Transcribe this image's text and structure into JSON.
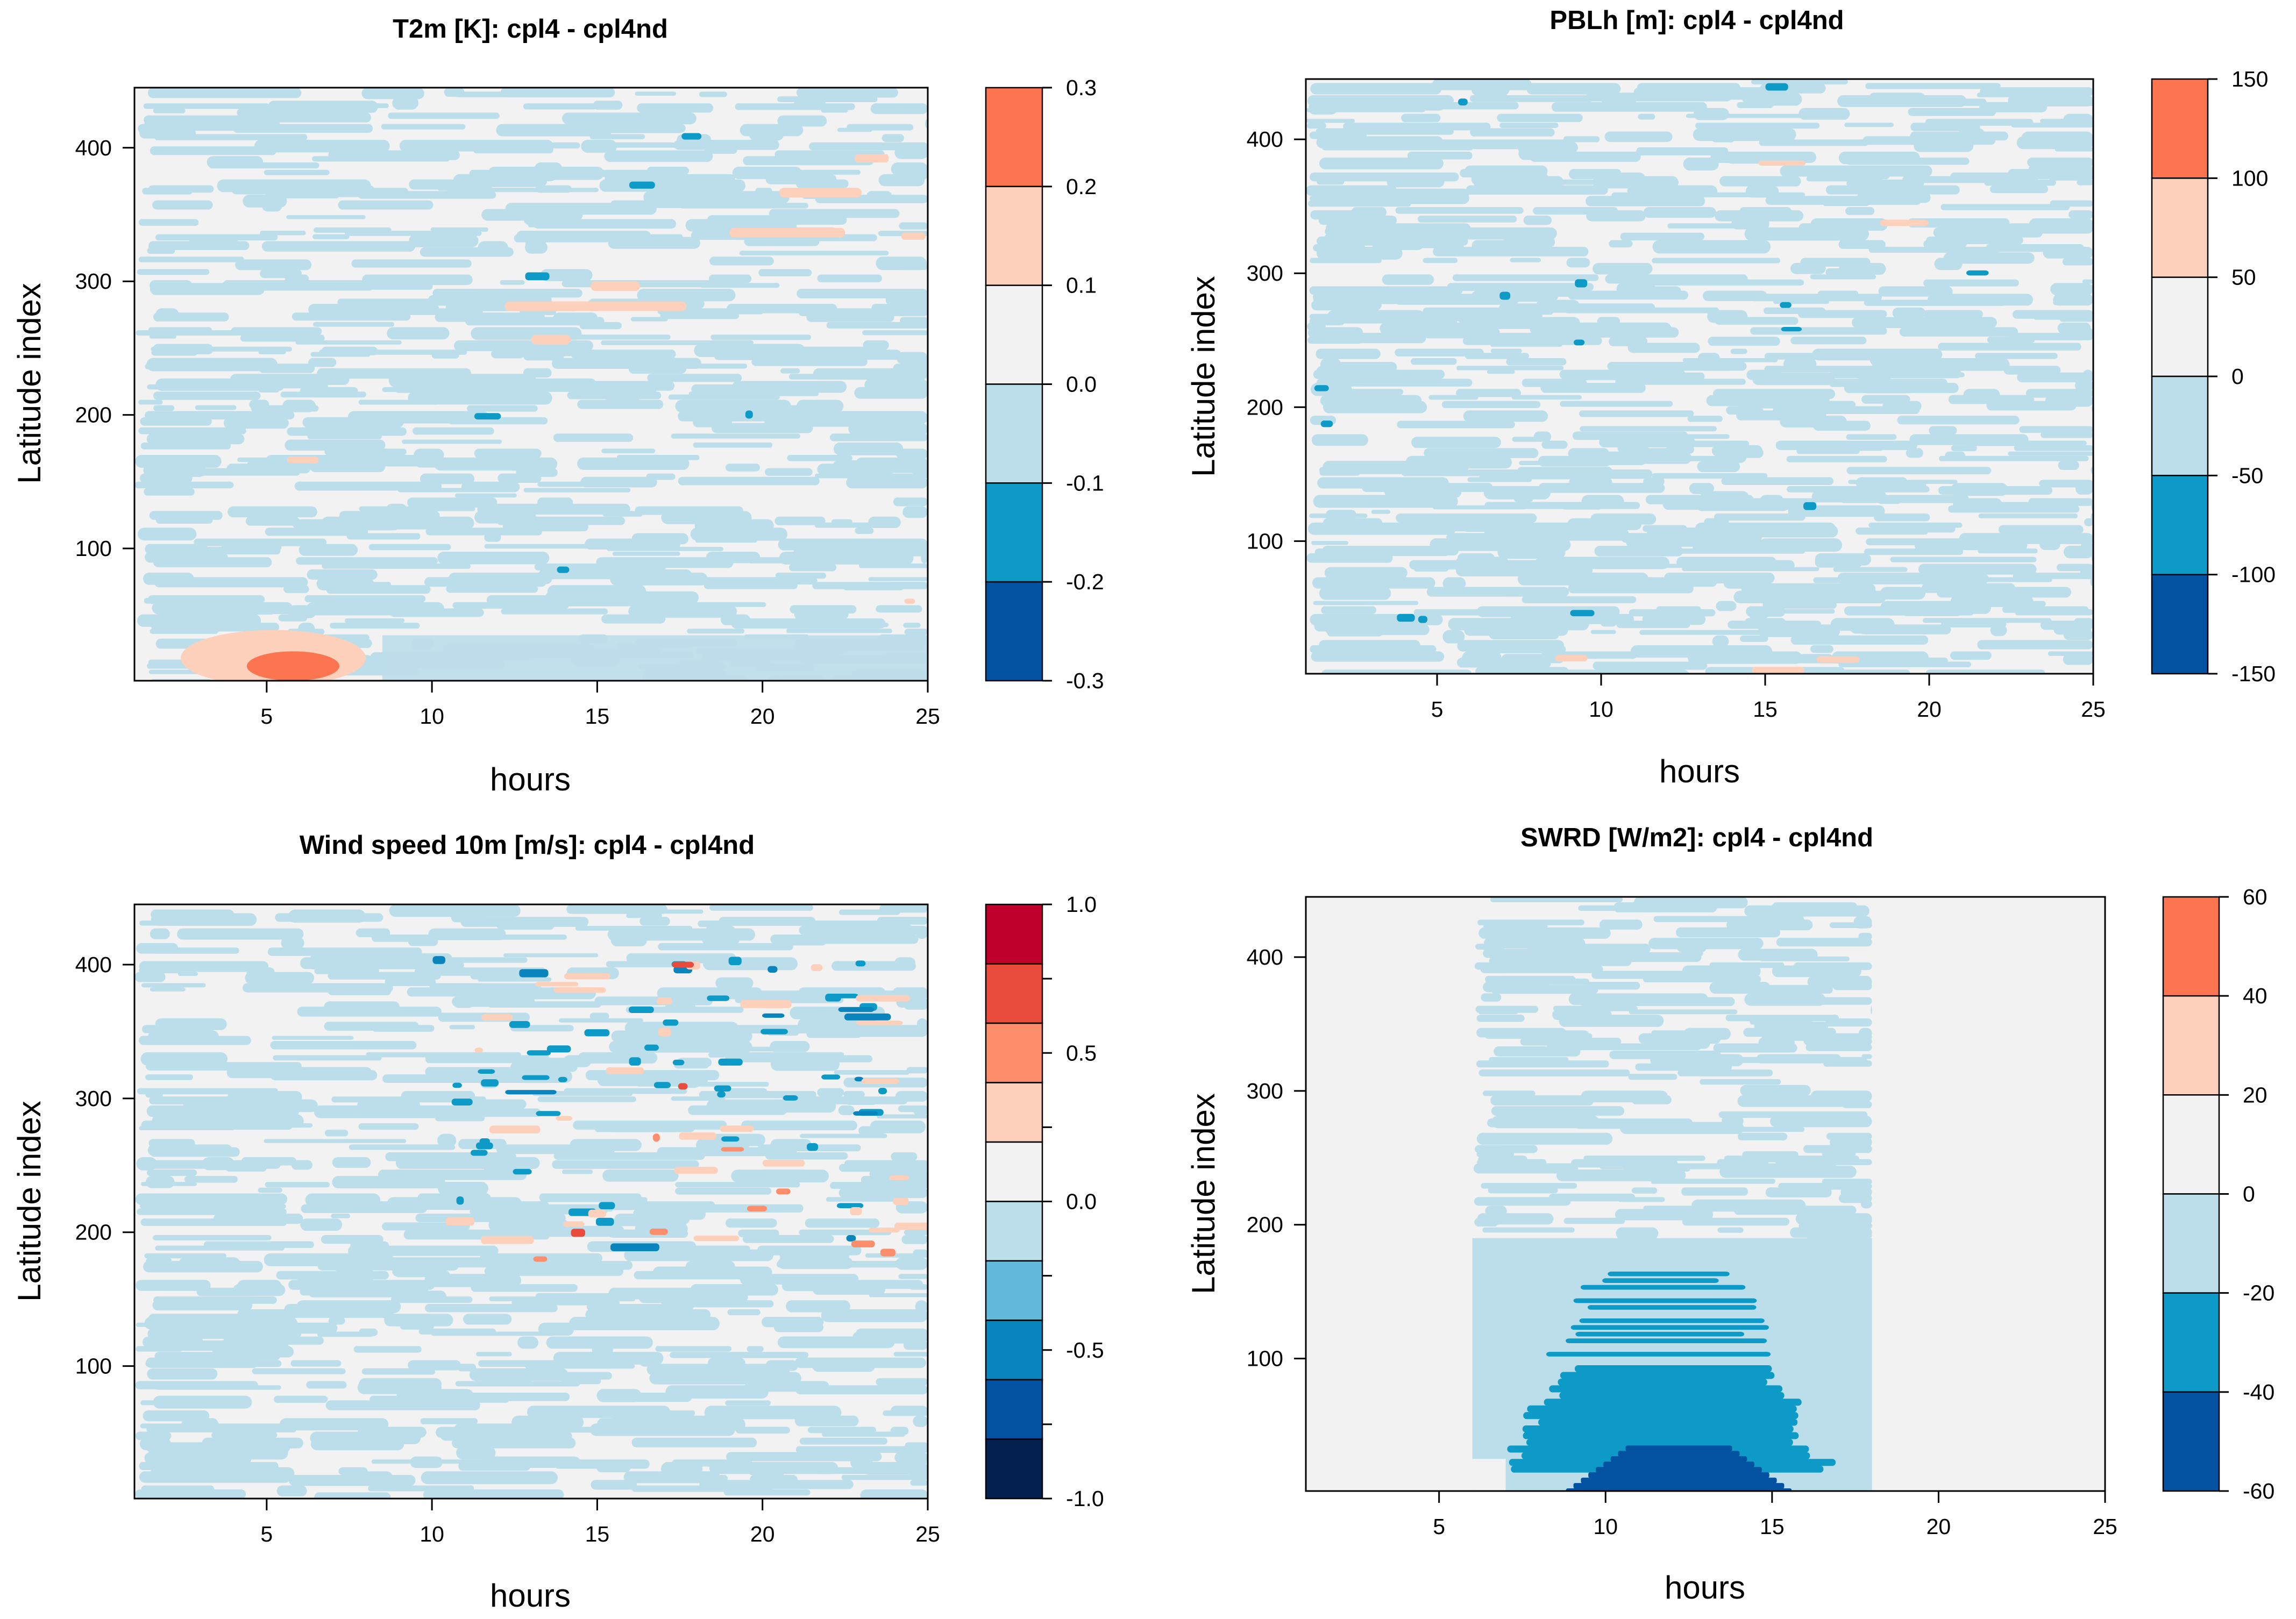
{
  "chart_data": [
    {
      "type": "heatmap",
      "id": "t2m",
      "title": "T2m [K]: cpl4 - cpl4nd",
      "xlabel": "hours",
      "ylabel": "Latitude index",
      "xlim": [
        1,
        25
      ],
      "ylim": [
        1,
        445
      ],
      "xticks": [
        5,
        10,
        15,
        20,
        25
      ],
      "yticks": [
        100,
        200,
        300,
        400
      ],
      "colorbar": {
        "levels": [
          "0.3",
          "0.2",
          "0.1",
          "0.0",
          "-0.1",
          "-0.2",
          "-0.3"
        ],
        "colors": [
          "#FC7450",
          "#FDD0BB",
          "#F2F2F2",
          "#BCDEEA",
          "#0E9AC6",
          "#0352A1"
        ]
      }
    },
    {
      "type": "heatmap",
      "id": "pblh",
      "title": "PBLh [m]: cpl4 - cpl4nd",
      "xlabel": "hours",
      "ylabel": "Latitude index",
      "xlim": [
        1,
        25
      ],
      "ylim": [
        1,
        445
      ],
      "xticks": [
        5,
        10,
        15,
        20,
        25
      ],
      "yticks": [
        100,
        200,
        300,
        400
      ],
      "colorbar": {
        "levels": [
          "150",
          "100",
          "50",
          "0",
          "-50",
          "-100",
          "-150"
        ],
        "colors": [
          "#FC7450",
          "#FDD0BB",
          "#F2F2F2",
          "#BCDEEA",
          "#0E9AC6",
          "#0352A1"
        ]
      }
    },
    {
      "type": "heatmap",
      "id": "wind",
      "title": "Wind speed 10m [m/s]: cpl4 - cpl4nd",
      "xlabel": "hours",
      "ylabel": "Latitude index",
      "xlim": [
        1,
        25
      ],
      "ylim": [
        1,
        445
      ],
      "xticks": [
        5,
        10,
        15,
        20,
        25
      ],
      "yticks": [
        100,
        200,
        300,
        400
      ],
      "colorbar": {
        "levels": [
          "1.0",
          "",
          "0.5",
          "",
          "0.0",
          "",
          "-0.5",
          "",
          "-1.0"
        ],
        "colors": [
          "#C0002A",
          "#E94B3C",
          "#FC8E6B",
          "#FDD0BB",
          "#F2F2F2",
          "#BCDEEA",
          "#63B9DA",
          "#0A84BC",
          "#0352A1",
          "#04204F"
        ]
      }
    },
    {
      "type": "heatmap",
      "id": "swrd",
      "title": "SWRD [W/m2]: cpl4 - cpl4nd",
      "xlabel": "hours",
      "ylabel": "Latitude index",
      "xlim": [
        1,
        25
      ],
      "ylim": [
        1,
        445
      ],
      "xticks": [
        5,
        10,
        15,
        20,
        25
      ],
      "yticks": [
        100,
        200,
        300,
        400
      ],
      "colorbar": {
        "levels": [
          "60",
          "40",
          "20",
          "0",
          "-20",
          "-40",
          "-60"
        ],
        "colors": [
          "#FC7450",
          "#FDD0BB",
          "#F2F2F2",
          "#BCDEEA",
          "#0E9AC6",
          "#0352A1"
        ]
      }
    }
  ]
}
